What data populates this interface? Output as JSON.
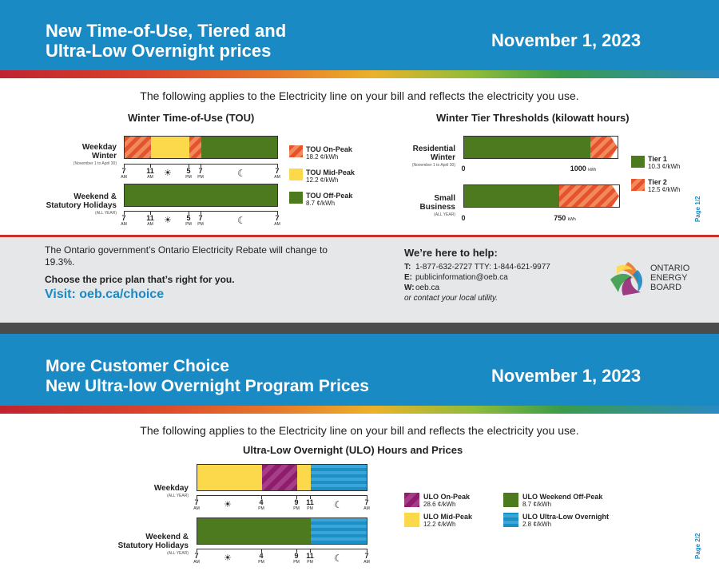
{
  "top": {
    "title": "New Time-of-Use, Tiered and\nUltra-Low Overnight prices",
    "date": "November 1, 2023",
    "intro": "The following applies to the Electricity line on your bill and reflects the electricity you use."
  },
  "tou": {
    "title": "Winter Time-of-Use (TOU)",
    "rows": [
      {
        "label": "Weekday\nWinter",
        "sub": "(November 1 to April 30)"
      },
      {
        "label": "Weekend &\nStatutory Holidays",
        "sub": "(ALL YEAR)"
      }
    ],
    "ticks": [
      {
        "h": "7",
        "p": "AM"
      },
      {
        "h": "11",
        "p": "AM"
      },
      {
        "h": "5",
        "p": "PM"
      },
      {
        "h": "7",
        "p": "PM"
      },
      {
        "h": "7",
        "p": "AM"
      }
    ],
    "legend": [
      {
        "name": "TOU On-Peak",
        "price": "18.2 ¢/kWh"
      },
      {
        "name": "TOU Mid-Peak",
        "price": "12.2 ¢/kWh"
      },
      {
        "name": "TOU Off-Peak",
        "price": "8.7 ¢/kWh"
      }
    ]
  },
  "tier": {
    "title": "Winter Tier Thresholds (kilowatt hours)",
    "rows": [
      {
        "label": "Residential\nWinter",
        "sub": "(November 1 to April 30)",
        "zero": "0",
        "threshold": "1000",
        "unit": "kWh",
        "threshold_kwh": 1000
      },
      {
        "label": "Small\nBusiness",
        "sub": "(ALL YEAR)",
        "zero": "0",
        "threshold": "750",
        "unit": "kWh",
        "threshold_kwh": 750
      }
    ],
    "legend": [
      {
        "name": "Tier 1",
        "price": "10.3 ¢/kWh"
      },
      {
        "name": "Tier 2",
        "price": "12.5 ¢/kWh"
      }
    ]
  },
  "page1": "Page 1/2",
  "page2": "Page 2/2",
  "info": {
    "rebate": "The Ontario government’s Ontario Electricity Rebate will change to 19.3%.",
    "choose": "Choose the price plan that’s right for you.",
    "visit": "Visit: oeb.ca/choice",
    "help_title": "We’re here to help:",
    "t_label": "T:",
    "t_value": "1-877-632-2727   TTY: 1-844-621-9977",
    "e_label": "E:",
    "e_value": "publicinformation@oeb.ca",
    "w_label": "W:",
    "w_value": "oeb.ca",
    "contact": "or contact your local utility.",
    "logo_text": "ONTARIO\nENERGY\nBOARD"
  },
  "bottom": {
    "title": "More Customer Choice\nNew Ultra-low Overnight Program Prices",
    "date": "November 1, 2023",
    "intro": "The following applies to the Electricity line on your bill and reflects the electricity you use."
  },
  "ulo": {
    "title": "Ultra-Low Overnight (ULO) Hours and Prices",
    "rows": [
      {
        "label": "Weekday",
        "sub": "(ALL YEAR)"
      },
      {
        "label": "Weekend &\nStatutory Holidays",
        "sub": "(ALL YEAR)"
      }
    ],
    "ticks": [
      {
        "h": "7",
        "p": "AM"
      },
      {
        "h": "4",
        "p": "PM"
      },
      {
        "h": "9",
        "p": "PM"
      },
      {
        "h": "11",
        "p": "PM"
      },
      {
        "h": "7",
        "p": "AM"
      }
    ],
    "legend": [
      {
        "name": "ULO On-Peak",
        "price": "28.6 ¢/kWh"
      },
      {
        "name": "ULO Mid-Peak",
        "price": "12.2 ¢/kWh"
      },
      {
        "name": "ULO Weekend Off-Peak",
        "price": "8.7 ¢/kWh"
      },
      {
        "name": "ULO Ultra-Low Overnight",
        "price": "2.8 ¢/kWh"
      }
    ]
  },
  "colors": {
    "banner": "#1a8ac4",
    "tou_on_peak": "#e5532d",
    "tou_mid_peak": "#fcd94a",
    "tou_off_peak": "#4e7a1f",
    "ulo_on_peak": "#8f1d6e",
    "ulo_ultra_low": "#1b8fc6"
  },
  "icons": {
    "day": "sun-icon",
    "night": "moon-icon"
  }
}
